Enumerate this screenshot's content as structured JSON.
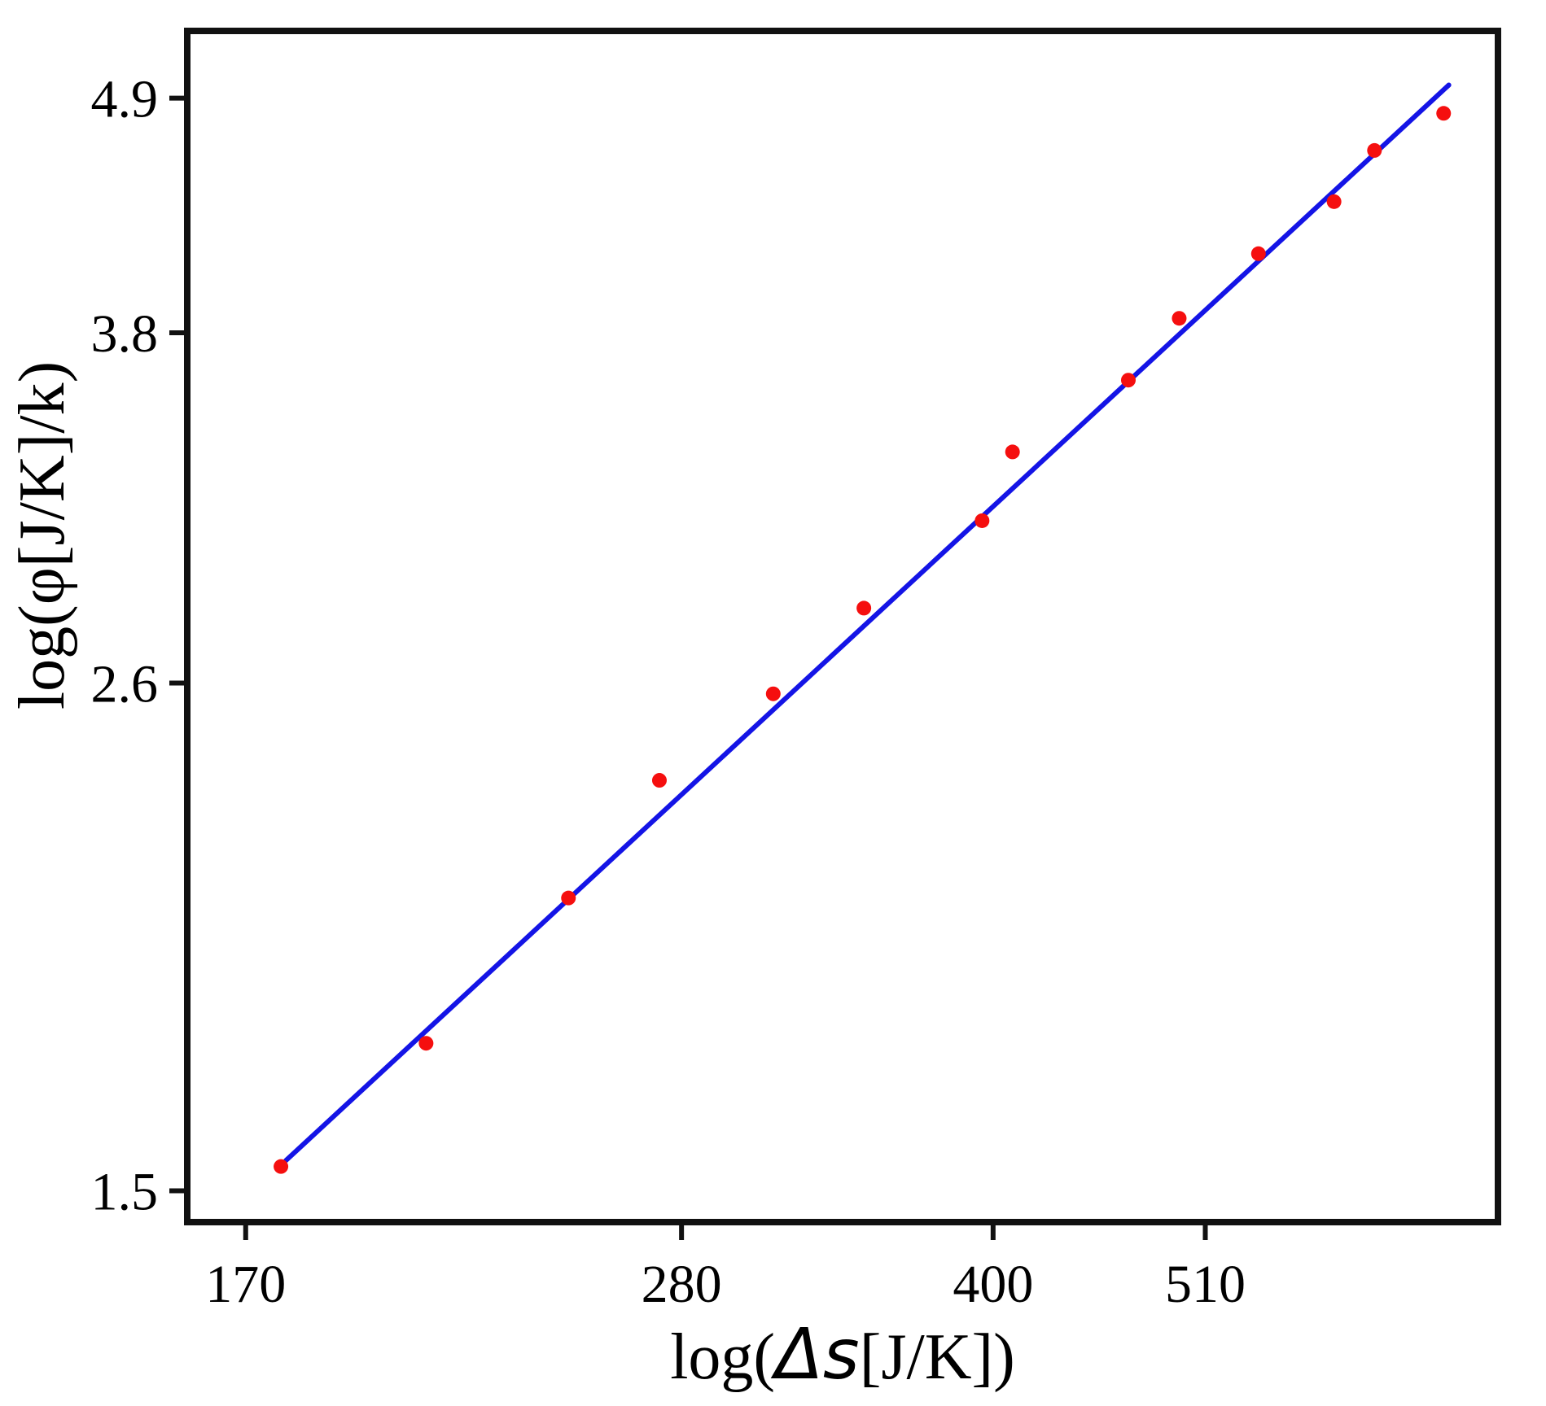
{
  "chart_data": {
    "type": "scatter",
    "title": "",
    "xlabel": "log(Δs[J/K])",
    "xlabel_parts": [
      "log(",
      "Δs",
      "[J/K])"
    ],
    "ylabel": "log(φ[J/K]/k)",
    "x_scale": "log",
    "y_scale": "log",
    "xlim": [
      159,
      713
    ],
    "ylim": [
      1.45,
      5.27
    ],
    "x_ticks": [
      170,
      280,
      400,
      510
    ],
    "x_tick_labels": [
      "170",
      "280",
      "400",
      "510"
    ],
    "y_ticks": [
      1.5,
      2.6,
      3.8,
      4.9
    ],
    "y_tick_labels": [
      "1.5",
      "2.6",
      "3.8",
      "4.9"
    ],
    "grid": false,
    "legend": null,
    "points": [
      {
        "x": 177,
        "y": 1.54
      },
      {
        "x": 209,
        "y": 1.76
      },
      {
        "x": 246,
        "y": 2.06
      },
      {
        "x": 273,
        "y": 2.34
      },
      {
        "x": 311,
        "y": 2.57
      },
      {
        "x": 345,
        "y": 2.82
      },
      {
        "x": 395,
        "y": 3.1
      },
      {
        "x": 409,
        "y": 3.34
      },
      {
        "x": 467,
        "y": 3.61
      },
      {
        "x": 495,
        "y": 3.86
      },
      {
        "x": 542,
        "y": 4.14
      },
      {
        "x": 591,
        "y": 4.38
      },
      {
        "x": 619,
        "y": 4.63
      },
      {
        "x": 670,
        "y": 4.82
      }
    ],
    "fit_line": {
      "x1": 178,
      "y1": 1.55,
      "x2": 674,
      "y2": 4.97
    },
    "colors": {
      "points": "#f50f0f",
      "line": "#1414e6",
      "axis": "#111111",
      "background": "#ffffff"
    }
  }
}
